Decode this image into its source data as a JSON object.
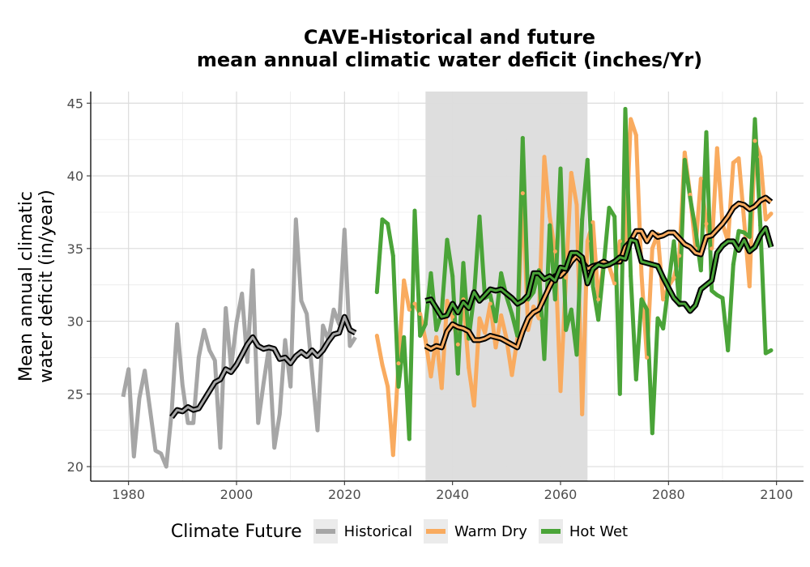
{
  "title_line1": "CAVE-Historical and future",
  "title_line2": "mean annual climatic water deficit (inches/Yr)",
  "colors": {
    "Historical": "#a6a6a6",
    "Warm Dry": "#f9ab5f",
    "Hot Wet": "#4aa438",
    "shade": "#dcdcdc",
    "smooth": "#000000"
  },
  "legend": {
    "title": "Climate Future",
    "items": [
      "Historical",
      "Warm Dry",
      "Hot Wet"
    ]
  },
  "chart_data": {
    "type": "line",
    "title": "CAVE-Historical and future mean annual climatic water deficit (inches/Yr)",
    "xlabel": "",
    "ylabel": "Mean annual climatic water deficit (in/year)",
    "ylabel_lines": [
      "Mean annual climatic",
      "water deficit (in/year)"
    ],
    "xlim": [
      1973,
      2105
    ],
    "ylim": [
      19,
      45.8
    ],
    "xticks": [
      1980,
      2000,
      2020,
      2040,
      2060,
      2080,
      2100
    ],
    "yticks": [
      20,
      25,
      30,
      35,
      40,
      45
    ],
    "grid": true,
    "legend_position": "bottom",
    "shaded_period": [
      2035,
      2065
    ],
    "series": [
      {
        "name": "Historical",
        "x": [
          1979,
          1980,
          1981,
          1982,
          1983,
          1984,
          1985,
          1986,
          1987,
          1988,
          1989,
          1990,
          1991,
          1992,
          1993,
          1994,
          1995,
          1996,
          1997,
          1998,
          1999,
          2000,
          2001,
          2002,
          2003,
          2004,
          2005,
          2006,
          2007,
          2008,
          2009,
          2010,
          2011,
          2012,
          2013,
          2014,
          2015,
          2016,
          2017,
          2018,
          2019,
          2020,
          2021,
          2022
        ],
        "values": [
          24.8,
          26.7,
          20.7,
          24.7,
          26.6,
          23.9,
          21.1,
          20.9,
          20.0,
          23.8,
          29.8,
          25.6,
          23.0,
          23.0,
          27.5,
          29.4,
          28.0,
          27.3,
          21.3,
          30.9,
          26.8,
          29.9,
          31.9,
          27.2,
          33.5,
          23.0,
          25.7,
          28.2,
          21.3,
          23.6,
          28.7,
          25.5,
          37.0,
          31.4,
          30.5,
          26.5,
          22.5,
          29.7,
          28.7,
          30.8,
          29.8,
          36.3,
          28.3,
          28.9
        ]
      },
      {
        "name": "Historical smoothed",
        "x": [
          1988,
          1989,
          1990,
          1991,
          1992,
          1993,
          1994,
          1995,
          1996,
          1997,
          1998,
          1999,
          2000,
          2001,
          2002,
          2003,
          2004,
          2005,
          2006,
          2007,
          2008,
          2009,
          2010,
          2011,
          2012,
          2013,
          2014,
          2015,
          2016,
          2017,
          2018,
          2019,
          2020,
          2021,
          2022
        ],
        "values": [
          23.4,
          23.9,
          23.8,
          24.1,
          23.9,
          24.0,
          24.6,
          25.2,
          25.8,
          26.0,
          26.7,
          26.5,
          27.0,
          27.7,
          28.4,
          28.9,
          28.3,
          28.1,
          28.2,
          28.1,
          27.4,
          27.5,
          27.1,
          27.6,
          27.9,
          27.6,
          28.0,
          27.6,
          28.0,
          28.6,
          29.1,
          29.2,
          30.3,
          29.4,
          29.2
        ]
      },
      {
        "name": "Warm Dry",
        "x": [
          2026,
          2027,
          2028,
          2029,
          2030,
          2031,
          2032,
          2033,
          2034,
          2035,
          2036,
          2037,
          2038,
          2039,
          2040,
          2041,
          2042,
          2043,
          2044,
          2045,
          2046,
          2047,
          2048,
          2049,
          2050,
          2051,
          2052,
          2053,
          2054,
          2055,
          2056,
          2057,
          2058,
          2059,
          2060,
          2061,
          2062,
          2063,
          2064,
          2065,
          2066,
          2067,
          2068,
          2069,
          2070,
          2071,
          2072,
          2073,
          2074,
          2075,
          2076,
          2077,
          2078,
          2079,
          2080,
          2081,
          2082,
          2083,
          2084,
          2085,
          2086,
          2087,
          2088,
          2089,
          2090,
          2091,
          2092,
          2093,
          2094,
          2095,
          2096,
          2097,
          2098,
          2099
        ],
        "values": [
          29.0,
          27.0,
          25.5,
          20.8,
          27.1,
          32.8,
          30.8,
          31.2,
          30.5,
          28.7,
          26.2,
          28.9,
          25.4,
          31.4,
          30.3,
          28.4,
          31.5,
          26.8,
          24.2,
          30.2,
          29.2,
          31.2,
          28.2,
          30.4,
          28.8,
          26.3,
          28.8,
          38.8,
          29.4,
          31.0,
          30.2,
          41.3,
          37.2,
          34.8,
          25.2,
          33.0,
          40.2,
          38.0,
          23.6,
          35.5,
          36.8,
          31.5,
          34.0,
          33.8,
          32.6,
          35.5,
          34.6,
          43.9,
          42.8,
          33.2,
          27.5,
          35.0,
          36.0,
          31.5,
          32.4,
          33.0,
          34.5,
          41.6,
          38.7,
          35.0,
          39.8,
          36.7,
          35.0,
          41.9,
          36.7,
          35.5,
          40.9,
          41.2,
          36.9,
          32.4,
          42.4,
          41.3,
          37.0,
          37.4
        ]
      },
      {
        "name": "Warm Dry smoothed",
        "x": [
          2035,
          2036,
          2037,
          2038,
          2039,
          2040,
          2041,
          2042,
          2043,
          2044,
          2045,
          2046,
          2047,
          2048,
          2049,
          2050,
          2051,
          2052,
          2053,
          2054,
          2055,
          2056,
          2057,
          2058,
          2059,
          2060,
          2061,
          2062,
          2063,
          2064,
          2065,
          2066,
          2067,
          2068,
          2069,
          2070,
          2071,
          2072,
          2073,
          2074,
          2075,
          2076,
          2077,
          2078,
          2079,
          2080,
          2081,
          2082,
          2083,
          2084,
          2085,
          2086,
          2087,
          2088,
          2089,
          2090,
          2091,
          2092,
          2093,
          2094,
          2095,
          2096,
          2097,
          2098,
          2099
        ],
        "values": [
          28.3,
          28.1,
          28.3,
          28.2,
          29.3,
          29.8,
          29.6,
          29.5,
          29.3,
          28.7,
          28.7,
          28.8,
          29.0,
          28.9,
          28.8,
          28.6,
          28.4,
          28.2,
          29.3,
          30.2,
          30.6,
          30.8,
          31.6,
          32.4,
          33.1,
          33.1,
          33.5,
          34.1,
          34.5,
          34.1,
          33.6,
          33.8,
          33.9,
          34.1,
          33.9,
          34.1,
          34.1,
          35.1,
          35.5,
          36.2,
          36.2,
          35.5,
          36.1,
          35.8,
          35.9,
          36.1,
          36.1,
          35.7,
          35.3,
          35.1,
          34.7,
          34.6,
          35.8,
          35.9,
          36.3,
          36.7,
          37.2,
          37.8,
          38.1,
          38.0,
          37.7,
          37.9,
          38.3,
          38.5,
          38.2
        ]
      },
      {
        "name": "Hot Wet",
        "x": [
          2026,
          2027,
          2028,
          2029,
          2030,
          2031,
          2032,
          2033,
          2034,
          2035,
          2036,
          2037,
          2038,
          2039,
          2040,
          2041,
          2042,
          2043,
          2044,
          2045,
          2046,
          2047,
          2048,
          2049,
          2050,
          2051,
          2052,
          2053,
          2054,
          2055,
          2056,
          2057,
          2058,
          2059,
          2060,
          2061,
          2062,
          2063,
          2064,
          2065,
          2066,
          2067,
          2068,
          2069,
          2070,
          2071,
          2072,
          2073,
          2074,
          2075,
          2076,
          2077,
          2078,
          2079,
          2080,
          2081,
          2082,
          2083,
          2084,
          2085,
          2086,
          2087,
          2088,
          2089,
          2090,
          2091,
          2092,
          2093,
          2094,
          2095,
          2096,
          2097,
          2098,
          2099
        ],
        "values": [
          32.0,
          37.0,
          36.7,
          34.5,
          25.5,
          28.9,
          21.9,
          37.6,
          29.0,
          29.8,
          33.3,
          29.4,
          30.6,
          35.6,
          33.1,
          26.4,
          34.0,
          28.8,
          31.8,
          37.2,
          31.6,
          31.8,
          30.0,
          33.3,
          31.7,
          30.5,
          29.0,
          42.6,
          31.5,
          32.0,
          33.5,
          27.4,
          36.6,
          31.5,
          40.5,
          29.4,
          30.8,
          27.7,
          37.0,
          41.1,
          32.4,
          30.1,
          33.8,
          37.8,
          37.2,
          25.0,
          44.6,
          33.1,
          26.0,
          31.5,
          30.8,
          22.3,
          30.2,
          29.5,
          32.5,
          35.5,
          31.1,
          41.1,
          38.5,
          36.3,
          33.5,
          43.0,
          32.1,
          31.8,
          31.6,
          28.0,
          33.9,
          36.2,
          36.1,
          35.8,
          43.9,
          36.6,
          27.8,
          28.0
        ]
      },
      {
        "name": "Hot Wet smoothed",
        "x": [
          2035,
          2036,
          2037,
          2038,
          2039,
          2040,
          2041,
          2042,
          2043,
          2044,
          2045,
          2046,
          2047,
          2048,
          2049,
          2050,
          2051,
          2052,
          2053,
          2054,
          2055,
          2056,
          2057,
          2058,
          2059,
          2060,
          2061,
          2062,
          2063,
          2064,
          2065,
          2066,
          2067,
          2068,
          2069,
          2070,
          2071,
          2072,
          2073,
          2074,
          2075,
          2076,
          2077,
          2078,
          2079,
          2080,
          2081,
          2082,
          2083,
          2084,
          2085,
          2086,
          2087,
          2088,
          2089,
          2090,
          2091,
          2092,
          2093,
          2094,
          2095,
          2096,
          2097,
          2098,
          2099
        ],
        "values": [
          31.4,
          31.5,
          30.9,
          30.3,
          30.4,
          31.2,
          30.6,
          31.3,
          30.9,
          32.0,
          31.4,
          31.8,
          32.2,
          32.1,
          32.2,
          31.9,
          31.6,
          31.2,
          31.4,
          31.8,
          33.3,
          33.3,
          32.9,
          33.1,
          32.8,
          33.7,
          33.6,
          34.7,
          34.7,
          34.4,
          32.6,
          33.6,
          33.9,
          33.8,
          33.9,
          34.1,
          34.4,
          34.3,
          35.6,
          35.5,
          34.1,
          34.0,
          33.9,
          33.8,
          33.0,
          32.3,
          31.6,
          31.2,
          31.2,
          30.7,
          31.1,
          32.2,
          32.5,
          32.8,
          34.7,
          35.2,
          35.5,
          35.5,
          34.9,
          35.6,
          34.8,
          35.1,
          35.9,
          36.4,
          35.1
        ]
      }
    ]
  }
}
